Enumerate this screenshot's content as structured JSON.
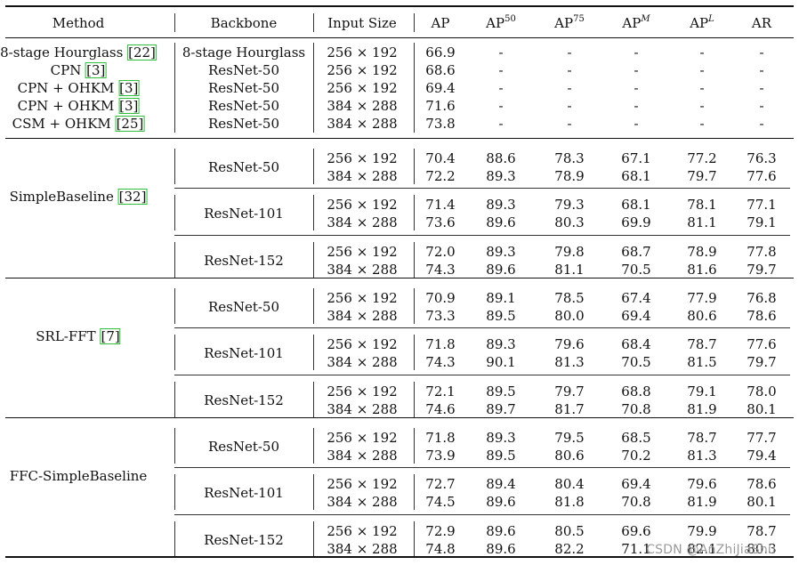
{
  "header": {
    "method": "Method",
    "backbone": "Backbone",
    "input_size": "Input Size",
    "ap": "AP",
    "ap50_base": "AP",
    "ap50_sup": "50",
    "ap75_base": "AP",
    "ap75_sup": "75",
    "apm_base": "AP",
    "apm_sup": "M",
    "apl_base": "AP",
    "apl_sup": "L",
    "ar": "AR"
  },
  "top_block": [
    {
      "method": "8-stage Hourglass",
      "cite": "22",
      "backbone": "8-stage Hourglass",
      "input": "256 × 192",
      "ap": "66.9",
      "ap50": "-",
      "ap75": "-",
      "apm": "-",
      "apl": "-",
      "ar": "-"
    },
    {
      "method": "CPN",
      "cite": "3",
      "backbone": "ResNet-50",
      "input": "256 × 192",
      "ap": "68.6",
      "ap50": "-",
      "ap75": "-",
      "apm": "-",
      "apl": "-",
      "ar": "-"
    },
    {
      "method": "CPN + OHKM",
      "cite": "3",
      "backbone": "ResNet-50",
      "input": "256 × 192",
      "ap": "69.4",
      "ap50": "-",
      "ap75": "-",
      "apm": "-",
      "apl": "-",
      "ar": "-"
    },
    {
      "method": "CPN + OHKM",
      "cite": "3",
      "backbone": "ResNet-50",
      "input": "384 × 288",
      "ap": "71.6",
      "ap50": "-",
      "ap75": "-",
      "apm": "-",
      "apl": "-",
      "ar": "-"
    },
    {
      "method": "CSM + OHKM",
      "cite": "25",
      "backbone": "ResNet-50",
      "input": "384 × 288",
      "ap": "73.8",
      "ap50": "-",
      "ap75": "-",
      "apm": "-",
      "apl": "-",
      "ar": "-"
    }
  ],
  "groups": [
    {
      "method": "SimpleBaseline",
      "cite": "32",
      "subgroups": [
        {
          "backbone": "ResNet-50",
          "rows": [
            {
              "input": "256 × 192",
              "ap": "70.4",
              "ap50": "88.6",
              "ap75": "78.3",
              "apm": "67.1",
              "apl": "77.2",
              "ar": "76.3"
            },
            {
              "input": "384 × 288",
              "ap": "72.2",
              "ap50": "89.3",
              "ap75": "78.9",
              "apm": "68.1",
              "apl": "79.7",
              "ar": "77.6"
            }
          ]
        },
        {
          "backbone": "ResNet-101",
          "rows": [
            {
              "input": "256 × 192",
              "ap": "71.4",
              "ap50": "89.3",
              "ap75": "79.3",
              "apm": "68.1",
              "apl": "78.1",
              "ar": "77.1"
            },
            {
              "input": "384 × 288",
              "ap": "73.6",
              "ap50": "89.6",
              "ap75": "80.3",
              "apm": "69.9",
              "apl": "81.1",
              "ar": "79.1"
            }
          ]
        },
        {
          "backbone": "ResNet-152",
          "rows": [
            {
              "input": "256 × 192",
              "ap": "72.0",
              "ap50": "89.3",
              "ap75": "79.8",
              "apm": "68.7",
              "apl": "78.9",
              "ar": "77.8"
            },
            {
              "input": "384 × 288",
              "ap": "74.3",
              "ap50": "89.6",
              "ap75": "81.1",
              "apm": "70.5",
              "apl": "81.6",
              "ar": "79.7"
            }
          ]
        }
      ]
    },
    {
      "method": "SRL-FFT",
      "cite": "7",
      "subgroups": [
        {
          "backbone": "ResNet-50",
          "rows": [
            {
              "input": "256 × 192",
              "ap": "70.9",
              "ap50": "89.1",
              "ap75": "78.5",
              "apm": "67.4",
              "apl": "77.9",
              "ar": "76.8"
            },
            {
              "input": "384 × 288",
              "ap": "73.3",
              "ap50": "89.5",
              "ap75": "80.0",
              "apm": "69.4",
              "apl": "80.6",
              "ar": "78.6"
            }
          ]
        },
        {
          "backbone": "ResNet-101",
          "rows": [
            {
              "input": "256 × 192",
              "ap": "71.8",
              "ap50": "89.3",
              "ap75": "79.6",
              "apm": "68.4",
              "apl": "78.7",
              "ar": "77.6"
            },
            {
              "input": "384 × 288",
              "ap": "74.3",
              "ap50": "90.1",
              "ap75": "81.3",
              "apm": "70.5",
              "apl": "81.5",
              "ar": "79.7"
            }
          ]
        },
        {
          "backbone": "ResNet-152",
          "rows": [
            {
              "input": "256 × 192",
              "ap": "72.1",
              "ap50": "89.5",
              "ap75": "79.7",
              "apm": "68.8",
              "apl": "79.1",
              "ar": "78.0"
            },
            {
              "input": "384 × 288",
              "ap": "74.6",
              "ap50": "89.7",
              "ap75": "81.7",
              "apm": "70.8",
              "apl": "81.9",
              "ar": "80.1"
            }
          ]
        }
      ]
    },
    {
      "method": "FFC-SimpleBaseline",
      "cite": "",
      "subgroups": [
        {
          "backbone": "ResNet-50",
          "rows": [
            {
              "input": "256 × 192",
              "ap": "71.8",
              "ap50": "89.3",
              "ap75": "79.5",
              "apm": "68.5",
              "apl": "78.7",
              "ar": "77.7"
            },
            {
              "input": "384 × 288",
              "ap": "73.9",
              "ap50": "89.5",
              "ap75": "80.6",
              "apm": "70.2",
              "apl": "81.3",
              "ar": "79.4"
            }
          ]
        },
        {
          "backbone": "ResNet-101",
          "rows": [
            {
              "input": "256 × 192",
              "ap": "72.7",
              "ap50": "89.4",
              "ap75": "80.4",
              "apm": "69.4",
              "apl": "79.6",
              "ar": "78.6"
            },
            {
              "input": "384 × 288",
              "ap": "74.5",
              "ap50": "89.6",
              "ap75": "81.8",
              "apm": "70.8",
              "apl": "81.9",
              "ar": "80.1"
            }
          ]
        },
        {
          "backbone": "ResNet-152",
          "rows": [
            {
              "input": "256 × 192",
              "ap": "72.9",
              "ap50": "89.6",
              "ap75": "80.5",
              "apm": "69.6",
              "apl": "79.9",
              "ar": "78.7"
            },
            {
              "input": "384 × 288",
              "ap": "74.8",
              "ap50": "89.6",
              "ap75": "82.2",
              "apm": "71.1",
              "apl": "82.1",
              "ar": "80.3"
            }
          ]
        }
      ]
    }
  ],
  "watermark": "CSDN @AnZhiJiaShu"
}
